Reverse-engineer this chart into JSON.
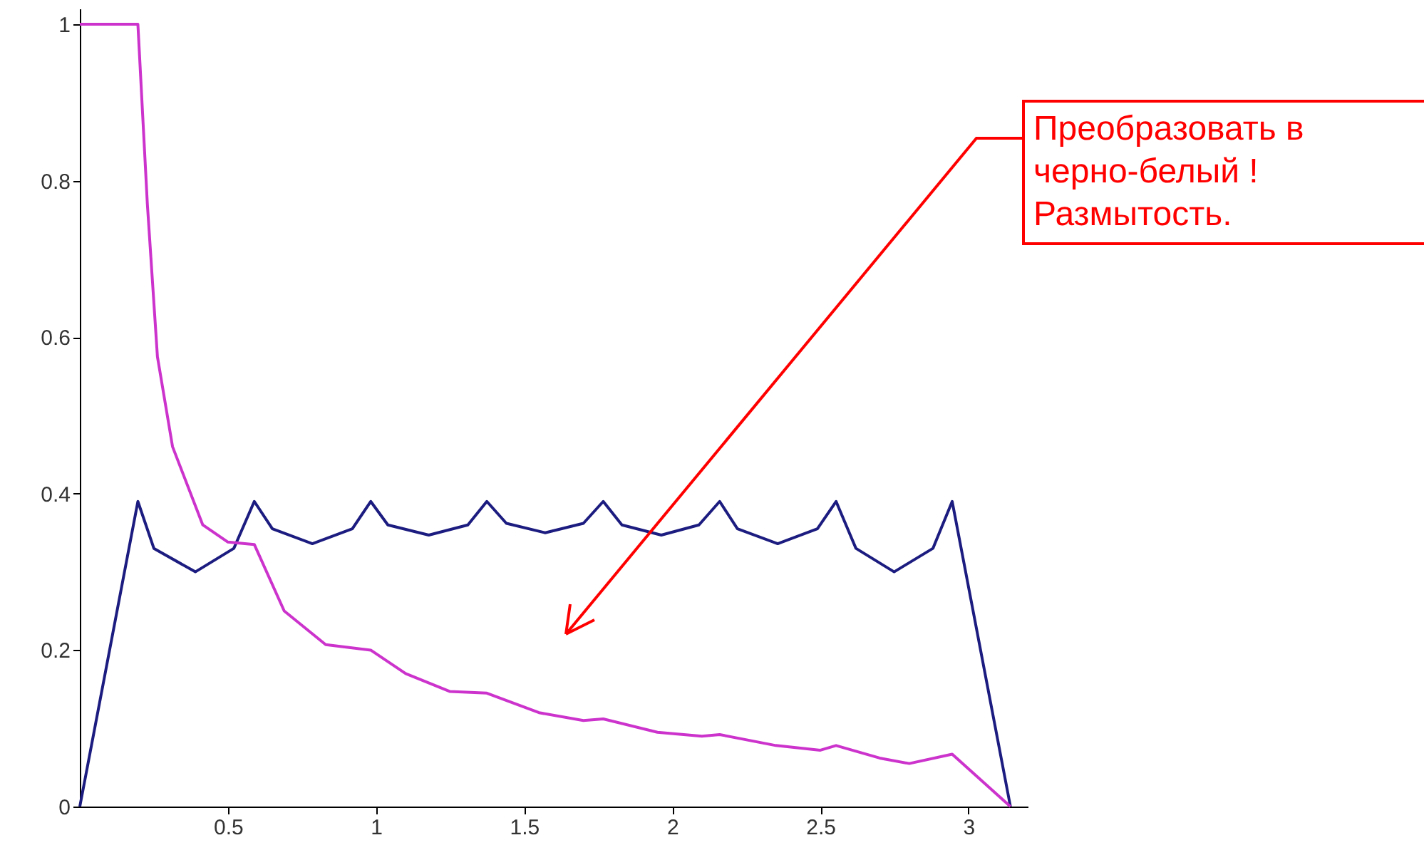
{
  "chart_data": {
    "type": "line",
    "xlim": [
      0,
      3.2
    ],
    "ylim": [
      0,
      1.02
    ],
    "xticks": [
      0.5,
      1,
      1.5,
      2,
      2.5,
      3
    ],
    "yticks": [
      0,
      0.2,
      0.4,
      0.6,
      0.8,
      1
    ],
    "grid": false,
    "marker": "none",
    "line_style": "solid",
    "series": [
      {
        "color": "#1c1c80",
        "x": [
          0,
          0.196,
          0.25,
          0.39,
          0.52,
          0.589,
          0.65,
          0.785,
          0.92,
          0.982,
          1.04,
          1.178,
          1.31,
          1.374,
          1.44,
          1.571,
          1.7,
          1.767,
          1.83,
          1.963,
          2.09,
          2.16,
          2.22,
          2.356,
          2.49,
          2.553,
          2.62,
          2.749,
          2.88,
          2.945,
          3.1416
        ],
        "values": [
          0,
          0.39,
          0.33,
          0.3,
          0.33,
          0.39,
          0.355,
          0.336,
          0.355,
          0.39,
          0.36,
          0.347,
          0.36,
          0.39,
          0.362,
          0.35,
          0.362,
          0.39,
          0.36,
          0.347,
          0.36,
          0.39,
          0.355,
          0.336,
          0.355,
          0.39,
          0.33,
          0.3,
          0.33,
          0.39,
          0
        ]
      },
      {
        "color": "#cc33cc",
        "x": [
          0,
          0.196,
          0.228,
          0.262,
          0.313,
          0.415,
          0.5,
          0.589,
          0.69,
          0.83,
          0.982,
          1.1,
          1.25,
          1.374,
          1.55,
          1.7,
          1.767,
          1.95,
          2.1,
          2.16,
          2.35,
          2.5,
          2.553,
          2.7,
          2.8,
          2.945,
          3.1416
        ],
        "values": [
          1,
          1,
          0.77,
          0.575,
          0.46,
          0.36,
          0.338,
          0.335,
          0.25,
          0.207,
          0.2,
          0.17,
          0.147,
          0.145,
          0.12,
          0.11,
          0.112,
          0.095,
          0.09,
          0.092,
          0.078,
          0.072,
          0.078,
          0.062,
          0.055,
          0.067,
          0
        ]
      }
    ],
    "annotations": [
      "Преобразовать в\nчерно-белый !\nРазмытость."
    ]
  }
}
